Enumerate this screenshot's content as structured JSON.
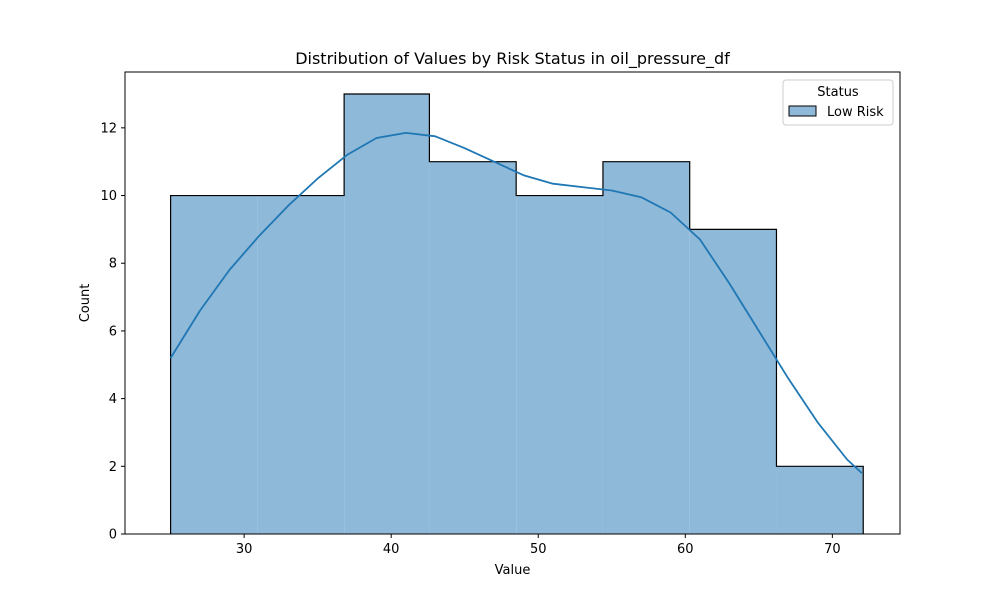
{
  "chart_data": {
    "type": "histogram",
    "title": "Distribution of Values by Risk Status in oil_pressure_df",
    "xlabel": "Value",
    "ylabel": "Count",
    "xlim": [
      21.9,
      74.6
    ],
    "ylim": [
      0,
      13.65
    ],
    "x_ticks": [
      30,
      40,
      50,
      60,
      70
    ],
    "y_ticks": [
      0,
      2,
      4,
      6,
      8,
      10,
      12
    ],
    "bin_edges": [
      25.0,
      30.9,
      36.8,
      42.6,
      48.5,
      54.4,
      60.3,
      66.2,
      72.1
    ],
    "counts": [
      10,
      10,
      13,
      11,
      10,
      11,
      9,
      2
    ],
    "kde": {
      "x": [
        25,
        27,
        29,
        31,
        33,
        35,
        37,
        39,
        41,
        43,
        45,
        47,
        49,
        51,
        53,
        55,
        57,
        59,
        61,
        63,
        65,
        67,
        69,
        71,
        72
      ],
      "y": [
        5.2,
        6.6,
        7.8,
        8.8,
        9.7,
        10.5,
        11.2,
        11.7,
        11.85,
        11.75,
        11.4,
        11.0,
        10.6,
        10.35,
        10.25,
        10.15,
        9.95,
        9.5,
        8.7,
        7.4,
        6.0,
        4.6,
        3.3,
        2.2,
        1.8
      ]
    },
    "series": [
      {
        "name": "Low Risk",
        "color": "#1f77b4",
        "fill": "#8fb9d9"
      }
    ],
    "legend": {
      "title": "Status",
      "position": "top-right"
    },
    "grid": false
  }
}
